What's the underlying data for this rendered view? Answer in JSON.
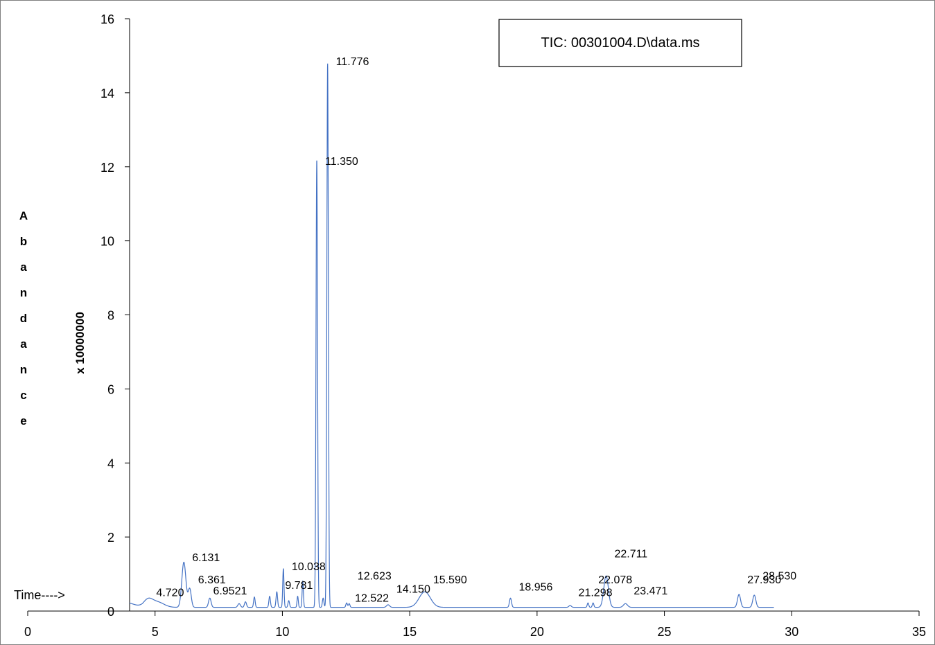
{
  "chart_data": {
    "type": "line",
    "legend_box": "TIC: 00301004.D\\data.ms",
    "ylabel_letters": [
      "A",
      "b",
      "a",
      "n",
      "d",
      "a",
      "n",
      "c",
      "e"
    ],
    "yunit_label": "x 10000000",
    "time_label": "Time---->",
    "xlim": [
      0,
      35
    ],
    "ylim": [
      0,
      16
    ],
    "x_ticks": [
      0,
      5,
      10,
      15,
      20,
      25,
      30,
      35
    ],
    "y_ticks": [
      0,
      2,
      4,
      6,
      8,
      10,
      12,
      14,
      16
    ],
    "x_tick_labels": [
      "0",
      "5",
      "10",
      "15",
      "20",
      "25",
      "30",
      "35"
    ],
    "y_tick_labels": [
      "0",
      "2",
      "4",
      "6",
      "8",
      "10",
      "12",
      "14",
      "16"
    ],
    "grid": false,
    "line_color": "#4472c4",
    "baseline": 0.1,
    "start": [
      4.0,
      0.22
    ],
    "end": [
      29.3,
      0.08
    ],
    "peaks": [
      {
        "x": 4.72,
        "h": 0.2,
        "w": 0.18
      },
      {
        "x": 5.1,
        "h": 0.14,
        "w": 0.25
      },
      {
        "x": 6.131,
        "h": 1.22,
        "w": 0.08
      },
      {
        "x": 6.361,
        "h": 0.5,
        "w": 0.06
      },
      {
        "x": 7.15,
        "h": 0.25,
        "w": 0.05
      },
      {
        "x": 8.3,
        "h": 0.1,
        "w": 0.05
      },
      {
        "x": 8.55,
        "h": 0.15,
        "w": 0.04
      },
      {
        "x": 8.9,
        "h": 0.28,
        "w": 0.03
      },
      {
        "x": 9.5,
        "h": 0.3,
        "w": 0.03
      },
      {
        "x": 9.781,
        "h": 0.42,
        "w": 0.03
      },
      {
        "x": 10.038,
        "h": 1.05,
        "w": 0.025
      },
      {
        "x": 10.25,
        "h": 0.18,
        "w": 0.03
      },
      {
        "x": 10.6,
        "h": 0.3,
        "w": 0.025
      },
      {
        "x": 10.8,
        "h": 0.7,
        "w": 0.025
      },
      {
        "x": 11.35,
        "h": 12.1,
        "w": 0.03
      },
      {
        "x": 11.6,
        "h": 0.25,
        "w": 0.03
      },
      {
        "x": 11.776,
        "h": 14.7,
        "w": 0.03
      },
      {
        "x": 12.522,
        "h": 0.12,
        "w": 0.03
      },
      {
        "x": 12.623,
        "h": 0.1,
        "w": 0.03
      },
      {
        "x": 14.15,
        "h": 0.07,
        "w": 0.06
      },
      {
        "x": 15.59,
        "h": 0.42,
        "w": 0.22
      },
      {
        "x": 18.956,
        "h": 0.25,
        "w": 0.04
      },
      {
        "x": 21.298,
        "h": 0.05,
        "w": 0.05
      },
      {
        "x": 22.0,
        "h": 0.12,
        "w": 0.03
      },
      {
        "x": 22.2,
        "h": 0.12,
        "w": 0.03
      },
      {
        "x": 22.711,
        "h": 0.85,
        "w": 0.09
      },
      {
        "x": 23.471,
        "h": 0.1,
        "w": 0.08
      },
      {
        "x": 27.93,
        "h": 0.35,
        "w": 0.06
      },
      {
        "x": 28.53,
        "h": 0.33,
        "w": 0.06
      }
    ],
    "peak_labels": [
      {
        "text": "4.720",
        "x": 4.72,
        "y": 0.4
      },
      {
        "text": "6.131",
        "x": 6.131,
        "y": 1.35
      },
      {
        "text": "6.361",
        "x": 6.361,
        "y": 0.75
      },
      {
        "text": "6.9521",
        "x": 6.9521,
        "y": 0.45
      },
      {
        "text": "9.781",
        "x": 9.781,
        "y": 0.6
      },
      {
        "text": "10.038",
        "x": 10.038,
        "y": 1.1
      },
      {
        "text": "11.350",
        "x": 11.35,
        "y": 12.05
      },
      {
        "text": "11.776",
        "x": 11.776,
        "y": 14.75
      },
      {
        "text": "12.522",
        "x": 12.522,
        "y": 0.25
      },
      {
        "text": "12.623",
        "x": 12.623,
        "y": 0.85
      },
      {
        "text": "14.150",
        "x": 14.15,
        "y": 0.5
      },
      {
        "text": "15.590",
        "x": 15.59,
        "y": 0.75
      },
      {
        "text": "18.956",
        "x": 18.956,
        "y": 0.55
      },
      {
        "text": "21.298",
        "x": 21.298,
        "y": 0.4
      },
      {
        "text": "22.078",
        "x": 22.078,
        "y": 0.75
      },
      {
        "text": "22.711",
        "x": 22.711,
        "y": 1.45
      },
      {
        "text": "23.471",
        "x": 23.471,
        "y": 0.45
      },
      {
        "text": "27.930",
        "x": 27.93,
        "y": 0.75
      },
      {
        "text": "28.530",
        "x": 28.53,
        "y": 0.85
      }
    ]
  }
}
